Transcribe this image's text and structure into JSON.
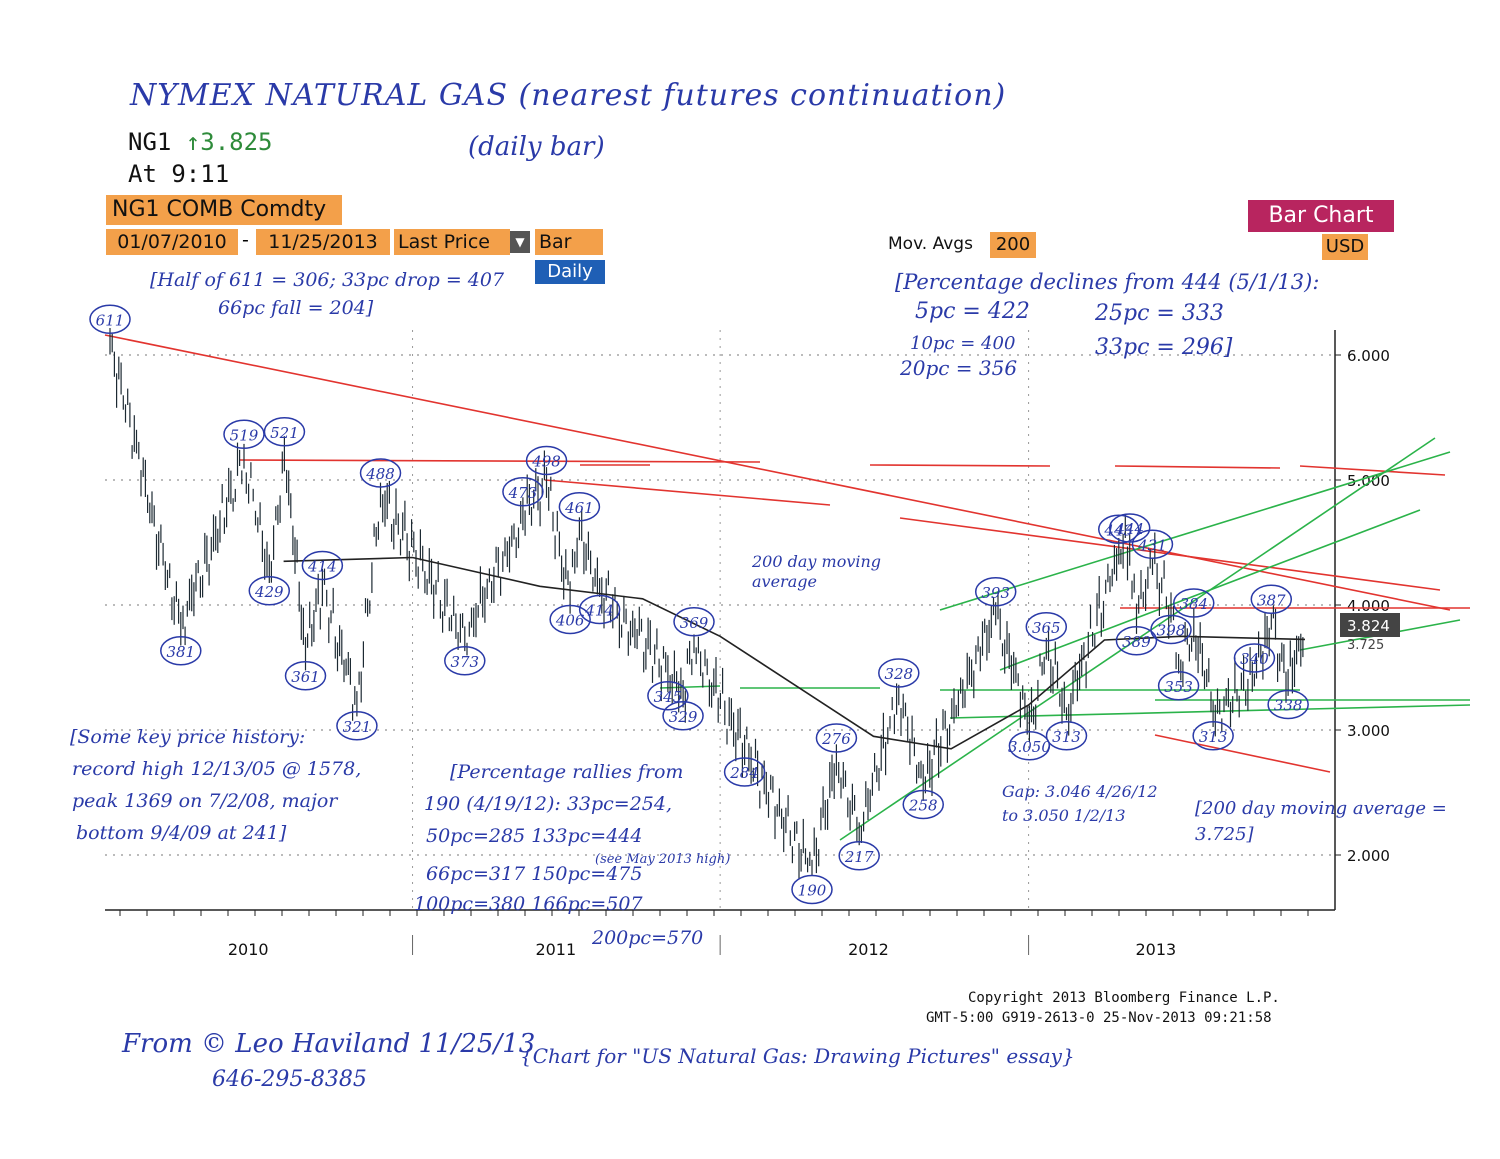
{
  "header": {
    "title": "NYMEX NATURAL GAS (nearest futures continuation)",
    "subtitle": "(daily bar)",
    "ticker": "NG1",
    "last_price": "↑3.825",
    "as_of": "At 9:11",
    "security": "NG1 COMB Comdty",
    "date_from": "01/07/2010",
    "date_to": "11/25/2013",
    "price_field": "Last Price",
    "chart_type": "Bar",
    "period": "Daily",
    "bar_chart_button": "Bar Chart",
    "currency": "USD",
    "mov_avgs_label": "Mov. Avgs",
    "mov_avgs_value": "200"
  },
  "notes": {
    "half": "[Half of 611 = 306; 33pc drop = 407",
    "half2": "66pc fall = 204]",
    "declines_title": "[Percentage declines from 444 (5/1/13):",
    "d5": "5pc = 422",
    "d10": "10pc = 400",
    "d20": "20pc = 356",
    "d25": "25pc = 333",
    "d33": "33pc = 296]",
    "history1": "[Some key price history:",
    "history2": "record high 12/13/05 @ 1578,",
    "history3": "peak 1369 on 7/2/08, major",
    "history4": "bottom 9/4/09 at 241]",
    "rally1": "[Percentage rallies from",
    "rally2": "190 (4/19/12): 33pc=254,",
    "rally3": "50pc=285   133pc=444",
    "rally4": "(see May 2013 high)",
    "rally5": "66pc=317   150pc=475",
    "rally6": "100pc=380  166pc=507",
    "rally7": "200pc=570",
    "ma_label": "200 day moving average",
    "gap": "Gap: 3.046 4/26/12 to 3.050 1/2/13",
    "ma_value": "[200 day moving average = 3.725]",
    "author": "From © Leo Haviland  11/25/13",
    "phone": "646-295-8385",
    "essay": "{Chart for \"US Natural Gas: Drawing Pictures\" essay}"
  },
  "footer": {
    "copyright": "Copyright 2013 Bloomberg Finance L.P.",
    "stamp": "GMT-5:00 G919-2613-0 25-Nov-2013 09:21:58"
  },
  "chart_data": {
    "type": "bar",
    "title": "NG1 COMB Comdty",
    "xlabel": "",
    "ylabel": "",
    "ylim": [
      1.6,
      6.4
    ],
    "y_ticks": [
      "2.000",
      "3.000",
      "4.000",
      "5.000",
      "6.000"
    ],
    "x_ticks": [
      "2010",
      "2011",
      "2012",
      "2013"
    ],
    "last_label": "3.824",
    "ma_last_label": "3.725",
    "grid": true,
    "series": [
      {
        "name": "NG1",
        "x": [
          "2010-01-07",
          "2010-04-01",
          "2010-06-15",
          "2010-07-15",
          "2010-08-02",
          "2010-08-27",
          "2010-09-16",
          "2010-10-27",
          "2010-11-24",
          "2011-03-04",
          "2011-05-12",
          "2011-06-09",
          "2011-07-07",
          "2011-07-18",
          "2011-08-11",
          "2011-10-31",
          "2011-11-18",
          "2011-12-01",
          "2012-01-30",
          "2012-04-19",
          "2012-05-18",
          "2012-06-14",
          "2012-07-31",
          "2012-08-29",
          "2012-11-23",
          "2013-01-02",
          "2013-01-22",
          "2013-02-15",
          "2013-04-18",
          "2013-05-01",
          "2013-05-09",
          "2013-05-28",
          "2013-06-19",
          "2013-06-28",
          "2013-07-16",
          "2013-08-08",
          "2013-09-26",
          "2013-10-16",
          "2013-11-05",
          "2013-11-25"
        ],
        "values": [
          6.11,
          3.81,
          5.19,
          4.29,
          5.21,
          3.61,
          4.14,
          3.21,
          4.88,
          3.73,
          4.73,
          4.98,
          4.06,
          4.61,
          4.14,
          3.45,
          3.29,
          3.69,
          2.84,
          1.9,
          2.76,
          2.17,
          3.28,
          2.58,
          3.93,
          3.05,
          3.65,
          3.13,
          4.43,
          4.44,
          3.89,
          4.31,
          3.98,
          3.53,
          3.84,
          3.13,
          3.4,
          3.87,
          3.38,
          3.824
        ]
      },
      {
        "name": "200 day moving average",
        "x": [
          "2010-08-01",
          "2011-01-01",
          "2011-06-01",
          "2011-10-01",
          "2012-01-01",
          "2012-04-01",
          "2012-07-01",
          "2012-10-01",
          "2013-01-01",
          "2013-04-01",
          "2013-07-01",
          "2013-11-25"
        ],
        "values": [
          4.35,
          4.38,
          4.15,
          4.05,
          3.75,
          3.35,
          2.95,
          2.85,
          3.2,
          3.72,
          3.75,
          3.725
        ]
      }
    ],
    "annotations": [
      "611",
      "381",
      "519",
      "429",
      "521",
      "361",
      "414",
      "321",
      "488",
      "373",
      "473",
      "498",
      "406",
      "461",
      "414",
      "345",
      "329",
      "369",
      "284",
      "190",
      "276",
      "217",
      "328",
      "258",
      "393",
      "3.050",
      "365",
      "313",
      "443",
      "444",
      "389",
      "431",
      "398",
      "353",
      "384",
      "313",
      "340",
      "387",
      "338"
    ]
  }
}
